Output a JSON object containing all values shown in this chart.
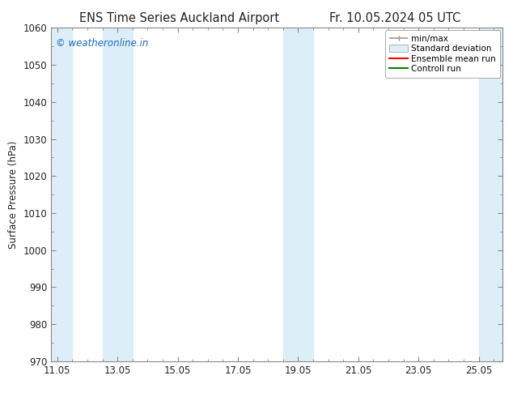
{
  "title": "ENS Time Series Auckland Airport",
  "title_right": "Fr. 10.05.2024 05 UTC",
  "ylabel": "Surface Pressure (hPa)",
  "ylim": [
    970,
    1060
  ],
  "yticks": [
    970,
    980,
    990,
    1000,
    1010,
    1020,
    1030,
    1040,
    1050,
    1060
  ],
  "xlim": [
    10.8,
    25.8
  ],
  "xtick_positions": [
    11.0,
    13.0,
    15.0,
    17.0,
    19.0,
    21.0,
    23.0,
    25.0
  ],
  "xtick_labels": [
    "11.05",
    "13.05",
    "15.05",
    "17.05",
    "19.05",
    "21.05",
    "23.05",
    "25.05"
  ],
  "shaded_regions": [
    {
      "xstart": 10.8,
      "xend": 11.5,
      "color": "#ddeef8"
    },
    {
      "xstart": 12.5,
      "xend": 13.5,
      "color": "#ddeef8"
    },
    {
      "xstart": 18.5,
      "xend": 19.5,
      "color": "#ddeef8"
    },
    {
      "xstart": 25.0,
      "xend": 25.8,
      "color": "#ddeef8"
    }
  ],
  "watermark_text": "© weatheronline.in",
  "watermark_color": "#1a6bb5",
  "legend_labels": [
    "min/max",
    "Standard deviation",
    "Ensemble mean run",
    "Controll run"
  ],
  "legend_line_colors": [
    "#999999",
    "#ddeef8",
    "#ff0000",
    "#008000"
  ],
  "background_color": "#ffffff",
  "plot_bg_color": "#ffffff",
  "spine_color": "#888888",
  "tick_color": "#444444",
  "font_color": "#222222",
  "title_fontsize": 10.5,
  "axis_fontsize": 8.5,
  "watermark_fontsize": 8.5
}
